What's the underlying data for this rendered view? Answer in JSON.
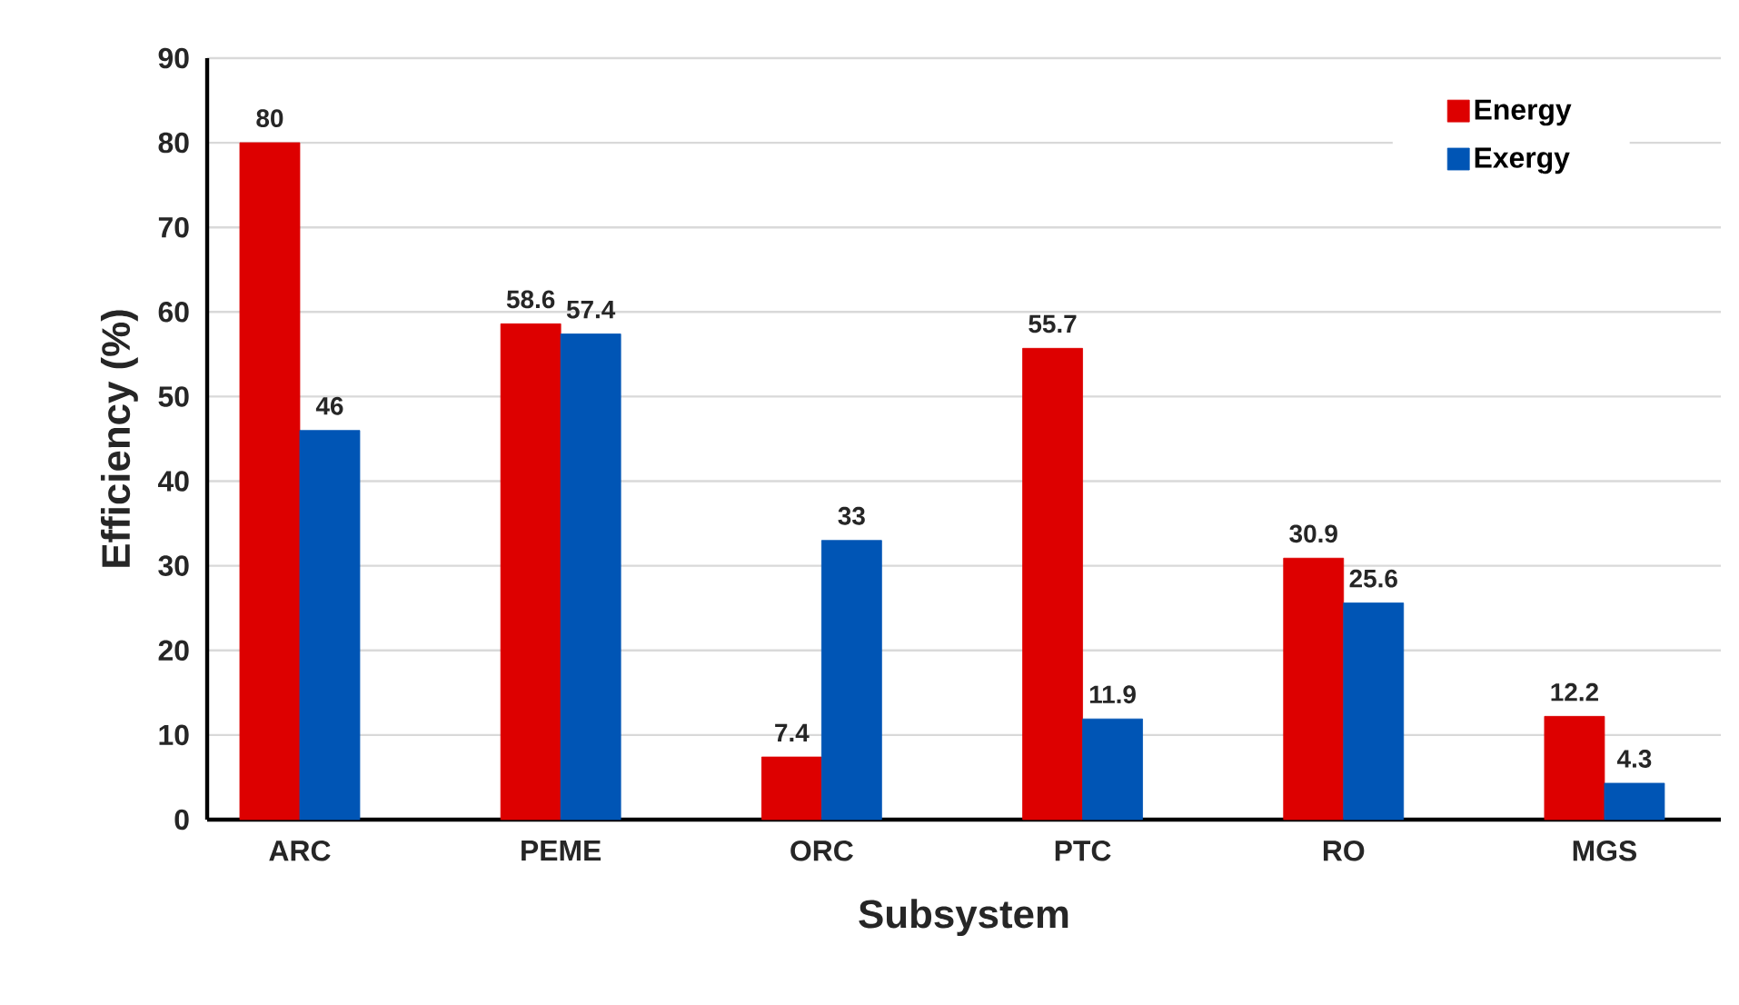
{
  "chart_data": {
    "type": "bar",
    "xlabel": "Subsystem",
    "ylabel": "Efficiency (%)",
    "categories": [
      "ARC",
      "PEME",
      "ORC",
      "PTC",
      "RO",
      "MGS"
    ],
    "series": [
      {
        "name": "Energy",
        "color": "#dd0000",
        "values": [
          80,
          58.6,
          7.4,
          55.7,
          30.9,
          12.2
        ]
      },
      {
        "name": "Exergy",
        "color": "#0055b5",
        "values": [
          46,
          57.4,
          33,
          11.9,
          25.6,
          4.3
        ]
      }
    ],
    "ylim": [
      0,
      90
    ],
    "yticks": [
      0,
      10,
      20,
      30,
      40,
      50,
      60,
      70,
      80,
      90
    ],
    "grid": "y",
    "legend": "top right",
    "data_labels": true
  }
}
